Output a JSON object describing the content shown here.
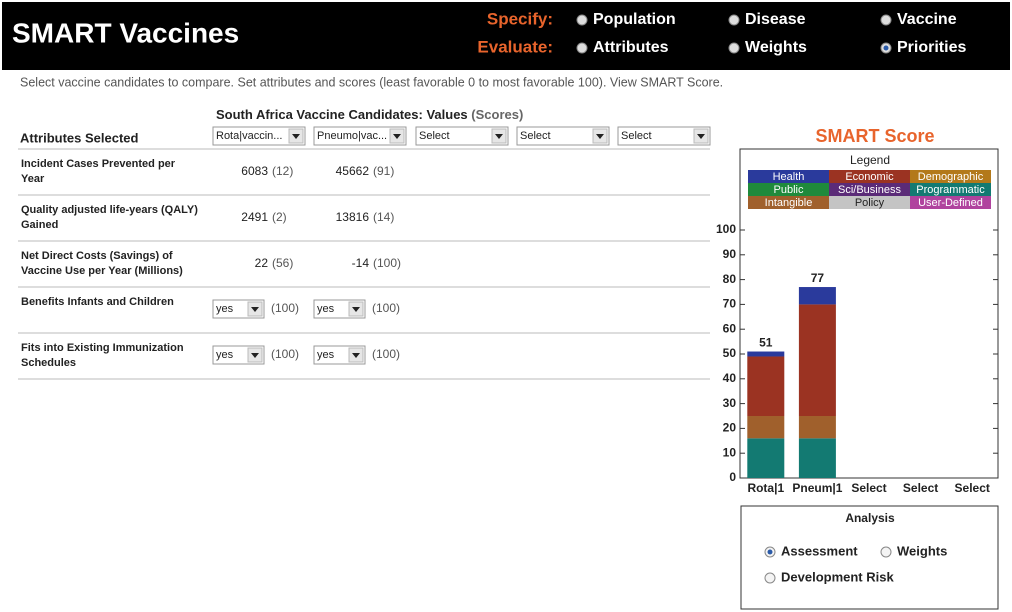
{
  "header": {
    "title": "SMART Vaccines",
    "specify": "Specify:",
    "evaluate": "Evaluate:",
    "specify_options": [
      "Population",
      "Disease",
      "Vaccine"
    ],
    "evaluate_options": [
      "Attributes",
      "Weights",
      "Priorities"
    ],
    "evaluate_selected": 2
  },
  "instructions": "Select vaccine candidates to compare. Set attributes and scores (least favorable 0 to most favorable 100). View SMART Score.",
  "table": {
    "title": "South Africa Vaccine Candidates: Values",
    "title_note": "(Scores)",
    "attributes_header": "Attributes Selected",
    "candidates": [
      "Rota|vaccin...",
      "Pneumo|vac...",
      "Select",
      "Select",
      "Select"
    ],
    "rows": [
      {
        "label": [
          "Incident Cases Prevented per",
          "Year"
        ],
        "color": "#2b3d8f",
        "cells": [
          {
            "value": "6083",
            "score": "(12)"
          },
          {
            "value": "45662",
            "score": "(91)"
          }
        ]
      },
      {
        "label": [
          "Quality adjusted life-years (QALY)",
          "Gained"
        ],
        "color": "#2b3d8f",
        "cells": [
          {
            "value": "2491",
            "score": "(2)"
          },
          {
            "value": "13816",
            "score": "(14)"
          }
        ]
      },
      {
        "label": [
          "Net Direct Costs (Savings) of",
          "Vaccine Use per Year (Millions)"
        ],
        "color": "#8c3a1a",
        "cells": [
          {
            "value": "22",
            "score": "(56)"
          },
          {
            "value": "-14",
            "score": "(100)"
          }
        ]
      },
      {
        "label": [
          "Benefits Infants and Children"
        ],
        "color": "#8a661c",
        "cells": [
          {
            "select": "yes",
            "score": "(100)"
          },
          {
            "select": "yes",
            "score": "(100)"
          }
        ]
      },
      {
        "label": [
          "Fits into Existing Immunization",
          "Schedules"
        ],
        "color": "#2a7a7a",
        "cells": [
          {
            "select": "yes",
            "score": "(100)"
          },
          {
            "select": "yes",
            "score": "(100)"
          }
        ]
      }
    ]
  },
  "chart_data": {
    "type": "bar",
    "stacked": true,
    "title": "SMART Score",
    "legend_title": "Legend",
    "categories": [
      "Rota|1",
      "Pneum|1",
      "Select",
      "Select",
      "Select"
    ],
    "series": [
      {
        "name": "Health",
        "color": "#2a3a9c",
        "values": [
          2,
          7,
          null,
          null,
          null
        ]
      },
      {
        "name": "Economic",
        "color": "#9b3322",
        "values": [
          24,
          45,
          null,
          null,
          null
        ]
      },
      {
        "name": "Demographic",
        "color": "#b3791a",
        "values": [
          null,
          null,
          null,
          null,
          null
        ]
      },
      {
        "name": "Public",
        "color": "#1f8a3c",
        "values": [
          null,
          null,
          null,
          null,
          null
        ]
      },
      {
        "name": "Sci/Business",
        "color": "#5b2b78",
        "values": [
          null,
          null,
          null,
          null,
          null
        ]
      },
      {
        "name": "Programmatic",
        "color": "#137a72",
        "values": [
          16,
          16,
          null,
          null,
          null
        ]
      },
      {
        "name": "Intangible",
        "color": "#a0602c",
        "values": [
          9,
          9,
          null,
          null,
          null
        ]
      },
      {
        "name": "Policy",
        "color": "#c4c4c4",
        "values": [
          null,
          null,
          null,
          null,
          null
        ]
      },
      {
        "name": "User-Defined",
        "color": "#b0439e",
        "values": [
          null,
          null,
          null,
          null,
          null
        ]
      }
    ],
    "totals": [
      51,
      77,
      null,
      null,
      null
    ],
    "ylim": [
      0,
      100
    ],
    "yticks": [
      0,
      10,
      20,
      30,
      40,
      50,
      60,
      70,
      80,
      90,
      100
    ]
  },
  "analysis": {
    "title": "Analysis",
    "options": [
      "Assessment",
      "Weights",
      "Development Risk"
    ],
    "selected": 0
  }
}
